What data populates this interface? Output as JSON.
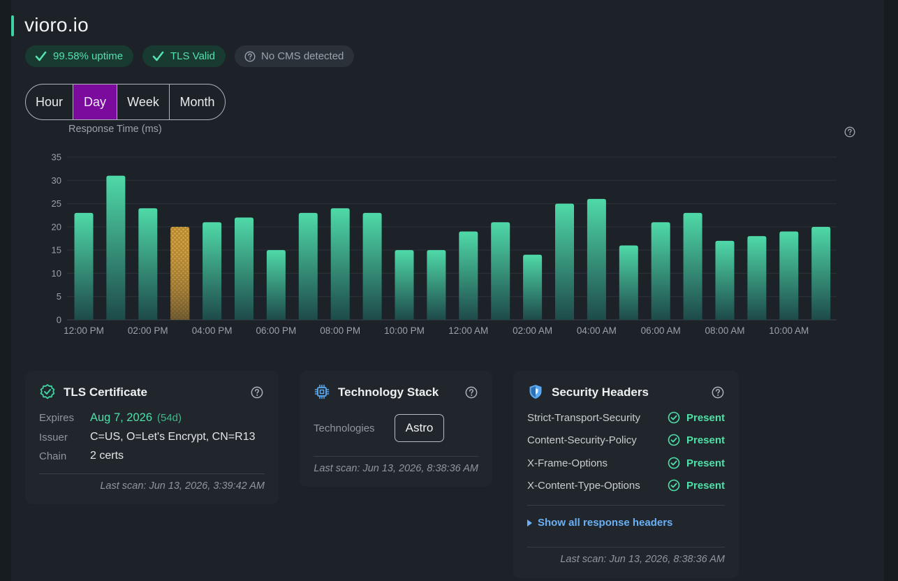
{
  "site": {
    "title": "vioro.io"
  },
  "badges": [
    {
      "label": "99.58% uptime",
      "icon": "check-icon",
      "kind": "ok"
    },
    {
      "label": "TLS Valid",
      "icon": "check-icon",
      "kind": "ok"
    },
    {
      "label": "No CMS detected",
      "icon": "question-circle-icon",
      "kind": "neutral"
    }
  ],
  "range_tabs": [
    {
      "label": "Hour",
      "active": false
    },
    {
      "label": "Day",
      "active": true
    },
    {
      "label": "Week",
      "active": false
    },
    {
      "label": "Month",
      "active": false
    }
  ],
  "colors": {
    "accent": "#3ed3a2",
    "bar_top": "#4fd9a8",
    "bar_bottom": "#1e4a4a",
    "highlight_bar": "#c99a3a",
    "active_tab": "#7a0b9c",
    "link": "#6ab0f5",
    "present": "#4fe0a8"
  },
  "chart_data": {
    "type": "bar",
    "title": "Response Time (ms)",
    "xlabel": "",
    "ylabel": "",
    "ylim": [
      0,
      35
    ],
    "yticks": [
      0,
      5,
      10,
      15,
      20,
      25,
      30,
      35
    ],
    "grid": true,
    "categories": [
      "12:00 PM",
      "01:00 PM",
      "02:00 PM",
      "03:00 PM",
      "04:00 PM",
      "05:00 PM",
      "06:00 PM",
      "07:00 PM",
      "08:00 PM",
      "09:00 PM",
      "10:00 PM",
      "11:00 PM",
      "12:00 AM",
      "01:00 AM",
      "02:00 AM",
      "03:00 AM",
      "04:00 AM",
      "05:00 AM",
      "06:00 AM",
      "07:00 AM",
      "08:00 AM",
      "09:00 AM",
      "10:00 AM",
      "11:00 AM"
    ],
    "xtick_labels": [
      "12:00 PM",
      "02:00 PM",
      "04:00 PM",
      "06:00 PM",
      "08:00 PM",
      "10:00 PM",
      "12:00 AM",
      "02:00 AM",
      "04:00 AM",
      "06:00 AM",
      "08:00 AM",
      "10:00 AM"
    ],
    "values": [
      23,
      31,
      24,
      20,
      21,
      22,
      15,
      23,
      24,
      23,
      15,
      15,
      19,
      21,
      14,
      25,
      26,
      16,
      21,
      23,
      17,
      18,
      19,
      20
    ],
    "highlighted_index": 3
  },
  "tls_card": {
    "title": "TLS Certificate",
    "icon": "badge-check-icon",
    "rows": [
      {
        "label": "Expires",
        "value": "Aug 7, 2026",
        "extra": "(54d)"
      },
      {
        "label": "Issuer",
        "value": "C=US, O=Let's Encrypt, CN=R13"
      },
      {
        "label": "Chain",
        "value": "2 certs"
      }
    ],
    "last_scan": "Last scan: Jun 13, 2026, 3:39:42 AM"
  },
  "tech_card": {
    "title": "Technology Stack",
    "icon": "cpu-chip-icon",
    "label": "Technologies",
    "technologies": [
      "Astro"
    ],
    "last_scan": "Last scan: Jun 13, 2026, 8:38:36 AM"
  },
  "security_card": {
    "title": "Security Headers",
    "icon": "shield-icon",
    "headers": [
      {
        "name": "Strict-Transport-Security",
        "status": "Present"
      },
      {
        "name": "Content-Security-Policy",
        "status": "Present"
      },
      {
        "name": "X-Frame-Options",
        "status": "Present"
      },
      {
        "name": "X-Content-Type-Options",
        "status": "Present"
      }
    ],
    "show_all": "Show all response headers",
    "last_scan": "Last scan: Jun 13, 2026, 8:38:36 AM"
  }
}
